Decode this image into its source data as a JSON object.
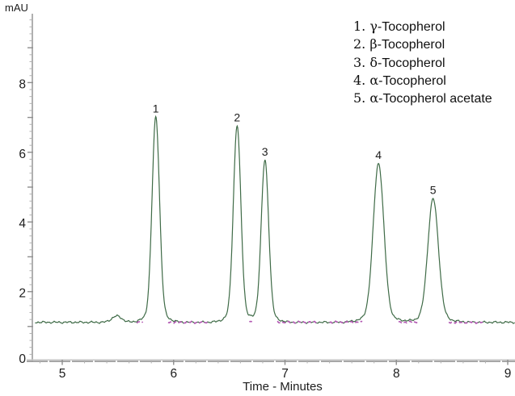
{
  "axes": {
    "y_unit_label": "mAU",
    "x_axis_label": "Time - Minutes"
  },
  "legend": {
    "items": [
      {
        "num": "1.",
        "greek": "γ",
        "rest": "-Tocopherol"
      },
      {
        "num": "2.",
        "greek": "β",
        "rest": "-Tocopherol"
      },
      {
        "num": "3.",
        "greek": "δ",
        "rest": "-Tocopherol"
      },
      {
        "num": "4.",
        "greek": "α",
        "rest": "-Tocopherol"
      },
      {
        "num": "5.",
        "greek": "α",
        "rest": "-Tocopherol acetate"
      }
    ]
  },
  "chart_data": {
    "type": "line",
    "title": "",
    "xlabel": "Time - Minutes",
    "ylabel": "mAU",
    "x_ticks": [
      5,
      6,
      7,
      8,
      9
    ],
    "y_ticks": [
      0,
      2,
      4,
      6,
      8
    ],
    "x_minor_step": 0.2,
    "y_minor_step": 0.2,
    "xlim": [
      4.755,
      9.065
    ],
    "ylim": [
      0,
      9.9
    ],
    "grid": false,
    "legend_position": "top-right",
    "baseline_mAU": 1.12,
    "noise_amp_mAU": 0.035,
    "trace_color": "#3f6b47",
    "integration_mark_color": "#b257b2",
    "axis_color": "#b0b0b0",
    "axis_major_color": "#8f8f8f",
    "peaks": [
      {
        "label": "1",
        "name": "γ-Tocopherol",
        "rt_min": 5.84,
        "apex_mAU": 7.0,
        "sigma_min": 0.033
      },
      {
        "label": "2",
        "name": "β-Tocopherol",
        "rt_min": 6.57,
        "apex_mAU": 6.75,
        "sigma_min": 0.033
      },
      {
        "label": "3",
        "name": "δ-Tocopherol",
        "rt_min": 6.82,
        "apex_mAU": 5.76,
        "sigma_min": 0.033
      },
      {
        "label": "4",
        "name": "α-Tocopherol",
        "rt_min": 7.84,
        "apex_mAU": 5.67,
        "sigma_min": 0.047
      },
      {
        "label": "5",
        "name": "α-Tocopherol acetate",
        "rt_min": 8.33,
        "apex_mAU": 4.66,
        "sigma_min": 0.047
      }
    ],
    "minor_disturbance": {
      "rt_min": 5.49,
      "apex_mAU": 1.3,
      "sigma_min": 0.045
    },
    "integration_marks_min": [
      [
        5.67,
        5.73
      ],
      [
        5.95,
        6.31
      ],
      [
        6.68,
        6.71
      ],
      [
        6.93,
        7.3
      ],
      [
        7.4,
        7.7
      ],
      [
        8.02,
        8.2
      ],
      [
        8.47,
        8.78
      ]
    ]
  }
}
